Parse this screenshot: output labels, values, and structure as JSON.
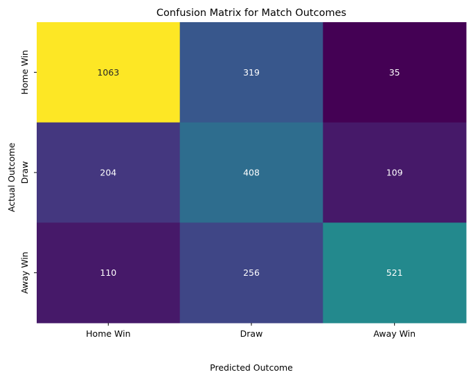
{
  "chart_data": {
    "type": "heatmap",
    "title": "Confusion Matrix for Match Outcomes",
    "xlabel": "Predicted Outcome",
    "ylabel": "Actual Outcome",
    "x_categories": [
      "Home Win",
      "Draw",
      "Away Win"
    ],
    "y_categories": [
      "Home Win",
      "Draw",
      "Away Win"
    ],
    "values": [
      [
        1063,
        319,
        35
      ],
      [
        204,
        408,
        109
      ],
      [
        110,
        256,
        521
      ]
    ],
    "colormap": "viridis",
    "color_range": [
      35,
      1063
    ],
    "annotated": true,
    "colorbar": false,
    "grid": false
  }
}
